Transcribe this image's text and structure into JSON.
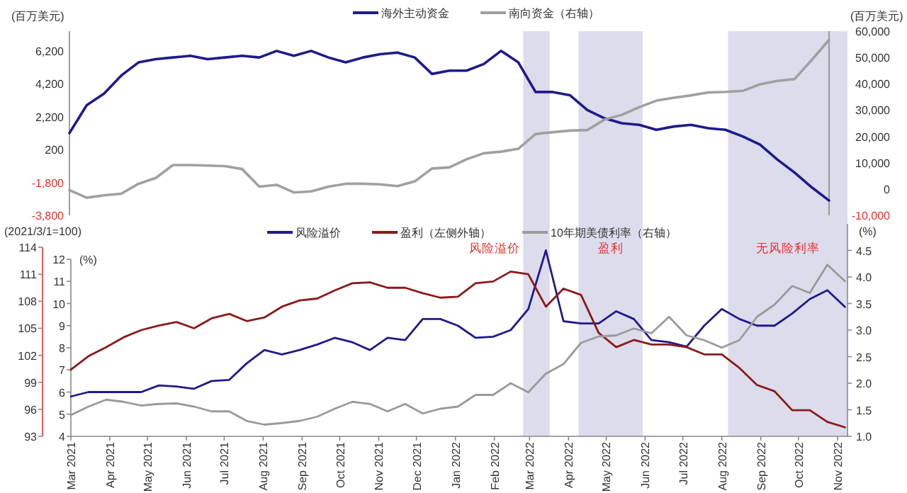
{
  "chart_data": [
    {
      "type": "line",
      "ylabel": "(百万美元)",
      "y2label": "(百万美元)",
      "legend": "top",
      "tick_labels": "y",
      "categories": [
        null,
        null,
        null,
        null,
        null,
        null,
        null,
        null,
        null,
        null,
        null,
        null,
        null,
        null,
        null,
        null,
        null,
        null,
        null,
        null,
        null,
        null,
        null,
        null,
        null,
        null,
        null,
        null,
        null,
        null,
        null,
        null,
        null,
        null,
        null,
        null,
        null,
        null,
        null,
        null,
        null,
        null,
        null,
        null,
        null
      ],
      "ylim": [
        -3800,
        7400
      ],
      "yticks": [
        {
          "value": -3800,
          "label": "-3,800"
        },
        {
          "value": -1800,
          "label": "-1,800"
        },
        200,
        {
          "value": 2200,
          "label": "2,200"
        },
        {
          "value": 4200,
          "label": "4,200"
        },
        {
          "value": 6200,
          "label": "6,200"
        }
      ],
      "y2lim": [
        -10000,
        60000
      ],
      "y2ticks": [
        {
          "value": -10000,
          "label": "-10,000"
        },
        0,
        {
          "value": 10000,
          "label": "10,000"
        },
        {
          "value": 20000,
          "label": "20,000"
        },
        {
          "value": 30000,
          "label": "30,000"
        },
        {
          "value": 40000,
          "label": "40,000"
        },
        {
          "value": 50000,
          "label": "50,000"
        },
        {
          "value": 60000,
          "label": "60,000"
        }
      ],
      "series": [
        {
          "name": "海外主动资金",
          "color": "#1f1a8a",
          "values": [
            1200,
            2900,
            3600,
            4700,
            5500,
            5700,
            5800,
            5900,
            5700,
            5800,
            5900,
            5800,
            6200,
            5900,
            6200,
            5800,
            5500,
            5800,
            6000,
            6100,
            5800,
            4800,
            5000,
            5000,
            5400,
            6200,
            5500,
            3700,
            3700,
            3500,
            2600,
            2100,
            1800,
            1700,
            1400,
            1600,
            1700,
            1500,
            1400,
            1000,
            500,
            -400,
            -1200,
            -2100,
            -2900
          ]
        },
        {
          "name": "南向资金（右轴）",
          "color": "#a0a0a0",
          "axis": "y2",
          "values": [
            -400,
            -3300,
            -2400,
            -1800,
            2000,
            4200,
            9100,
            9100,
            8900,
            8700,
            7600,
            900,
            1600,
            -1300,
            -900,
            900,
            2000,
            2000,
            1800,
            1100,
            2900,
            7800,
            8200,
            11300,
            13600,
            14200,
            15300,
            20900,
            21600,
            22200,
            22400,
            26400,
            28200,
            31100,
            33600,
            34700,
            35600,
            36700,
            36900,
            37300,
            39800,
            41100,
            41800,
            49100,
            56700
          ]
        }
      ]
    },
    {
      "type": "line",
      "ylabel": "(2021/3/1=100)",
      "y3label": "(%)",
      "y2label": "(%)",
      "legend": "top",
      "xlim": [
        "2021-03-01",
        "2022-11-09"
      ],
      "xticks": [
        {
          "value": "2021-03-01",
          "label": "Mar 2021"
        },
        {
          "value": "2021-04-01",
          "label": "Apr 2021"
        },
        {
          "value": "2021-05-01",
          "label": "May 2021"
        },
        {
          "value": "2021-06-01",
          "label": "Jun 2021"
        },
        {
          "value": "2021-07-01",
          "label": "Jul 2021"
        },
        {
          "value": "2021-08-01",
          "label": "Aug 2021"
        },
        {
          "value": "2021-09-01",
          "label": "Sep 2021"
        },
        {
          "value": "2021-10-01",
          "label": "Oct 2021"
        },
        {
          "value": "2021-11-01",
          "label": "Nov 2021"
        },
        {
          "value": "2021-12-01",
          "label": "Dec 2021"
        },
        {
          "value": "2022-01-01",
          "label": "Jan 2022"
        },
        {
          "value": "2022-02-01",
          "label": "Feb 2022"
        },
        {
          "value": "2022-03-01",
          "label": "Mar 2022"
        },
        {
          "value": "2022-04-01",
          "label": "Apr 2022"
        },
        {
          "value": "2022-05-01",
          "label": "May 2022"
        },
        {
          "value": "2022-06-01",
          "label": "Jun 2022"
        },
        {
          "value": "2022-07-01",
          "label": "Jul 2022"
        },
        {
          "value": "2022-08-01",
          "label": "Aug 2022"
        },
        {
          "value": "2022-09-01",
          "label": "Sep 2022"
        },
        {
          "value": "2022-10-01",
          "label": "Oct 2022"
        },
        {
          "value": "2022-11-01",
          "label": "Nov 2022"
        }
      ],
      "ylim": [
        93,
        116.6
      ],
      "yticks": [
        93,
        96,
        99,
        102,
        105,
        108,
        111,
        114
      ],
      "y3lim": [
        4,
        13.6
      ],
      "y3ticks": [
        4,
        5,
        6,
        7,
        8,
        9,
        10,
        11,
        12
      ],
      "y2lim": [
        1,
        5
      ],
      "y2ticks": [
        {
          "value": 1,
          "label": "1.0"
        },
        {
          "value": 1.5,
          "label": "1.5"
        },
        {
          "value": 2,
          "label": "2.0"
        },
        {
          "value": 2.5,
          "label": "2.5"
        },
        {
          "value": 3,
          "label": "3.0"
        },
        {
          "value": 3.5,
          "label": "3.5"
        },
        {
          "value": 4,
          "label": "4.0"
        },
        {
          "value": 4.5,
          "label": "4.5"
        }
      ],
      "bands": [
        {
          "axis": "x",
          "from": "2022-02-24",
          "to": "2022-03-17",
          "color": "#dcdcec",
          "label": "风险溢价"
        },
        {
          "axis": "x",
          "from": "2022-04-09",
          "to": "2022-05-30",
          "color": "#dcdcec",
          "label": "盈利"
        },
        {
          "axis": "x",
          "from": "2022-08-06",
          "to": "2022-11-09",
          "color": "#dcdcec",
          "label": "无风险利率"
        }
      ],
      "x": [
        "2021-03-01",
        "2021-03-15",
        "2021-03-29",
        "2021-04-12",
        "2021-04-26",
        "2021-05-10",
        "2021-05-24",
        "2021-06-07",
        "2021-06-21",
        "2021-07-05",
        "2021-07-19",
        "2021-08-02",
        "2021-08-16",
        "2021-08-30",
        "2021-09-13",
        "2021-09-27",
        "2021-10-11",
        "2021-10-25",
        "2021-11-08",
        "2021-11-22",
        "2021-12-06",
        "2021-12-20",
        "2022-01-03",
        "2022-01-17",
        "2022-01-31",
        "2022-02-14",
        "2022-02-28",
        "2022-03-14",
        "2022-03-28",
        "2022-04-11",
        "2022-04-25",
        "2022-05-09",
        "2022-05-23",
        "2022-06-06",
        "2022-06-20",
        "2022-07-04",
        "2022-07-18",
        "2022-08-01",
        "2022-08-15",
        "2022-08-29",
        "2022-09-12",
        "2022-09-26",
        "2022-10-10",
        "2022-10-24",
        "2022-11-07"
      ],
      "series": [
        {
          "name": "风险溢价",
          "color": "#1f1a8a",
          "axis": "y3",
          "values": [
            5.8,
            6.0,
            6.0,
            6.0,
            6.0,
            6.3,
            6.25,
            6.15,
            6.5,
            6.55,
            7.3,
            7.9,
            7.7,
            7.9,
            8.15,
            8.45,
            8.25,
            7.9,
            8.45,
            8.35,
            9.3,
            9.3,
            9.0,
            8.45,
            8.5,
            8.8,
            9.75,
            12.4,
            9.2,
            9.1,
            9.1,
            9.65,
            9.3,
            8.35,
            8.25,
            8.05,
            9.0,
            9.75,
            9.3,
            9.0,
            9.0,
            9.55,
            10.2,
            10.6,
            9.85
          ]
        },
        {
          "name": "盈利（左侧外轴）",
          "color": "#8b1a1a",
          "values": [
            100.4,
            101.9,
            102.9,
            104.0,
            104.8,
            105.3,
            105.7,
            105.0,
            106.1,
            106.6,
            105.8,
            106.2,
            107.4,
            108.1,
            108.3,
            109.2,
            110.0,
            110.1,
            109.5,
            109.5,
            108.9,
            108.4,
            108.5,
            110.0,
            110.2,
            111.3,
            111.0,
            107.4,
            109.4,
            108.7,
            104.5,
            102.9,
            103.7,
            103.2,
            103.2,
            102.9,
            102.1,
            102.1,
            100.6,
            98.7,
            98.0,
            95.9,
            95.9,
            94.6,
            94.0
          ]
        },
        {
          "name": "10年期美债利率（右轴）",
          "color": "#9a9a9a",
          "axis": "y2",
          "values": [
            1.4,
            1.56,
            1.69,
            1.65,
            1.58,
            1.61,
            1.62,
            1.56,
            1.47,
            1.47,
            1.29,
            1.22,
            1.25,
            1.29,
            1.37,
            1.52,
            1.65,
            1.61,
            1.47,
            1.61,
            1.43,
            1.52,
            1.56,
            1.78,
            1.78,
            2.0,
            1.83,
            2.18,
            2.36,
            2.76,
            2.88,
            2.9,
            3.03,
            2.94,
            3.25,
            2.9,
            2.81,
            2.67,
            2.81,
            3.25,
            3.48,
            3.83,
            3.7,
            4.23,
            3.92
          ]
        }
      ]
    }
  ]
}
